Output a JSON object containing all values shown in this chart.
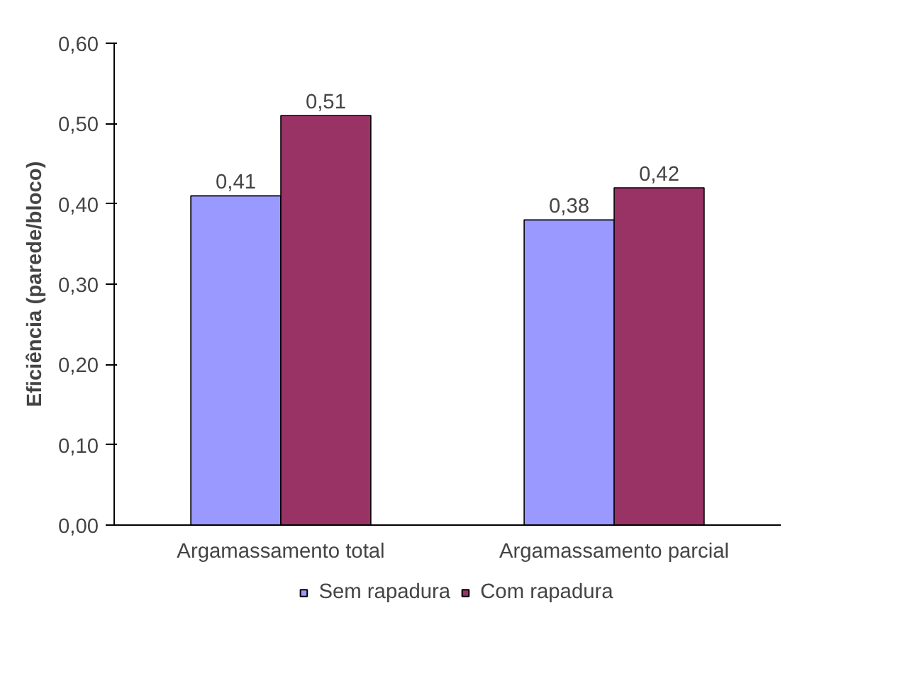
{
  "chart_data": {
    "type": "bar",
    "ylabel": "Eficiência (parede/bloco)",
    "categories": [
      "Argamassamento total",
      "Argamassamento parcial"
    ],
    "series": [
      {
        "name": "Sem rapadura",
        "color": "#9999ff",
        "values": [
          0.41,
          0.38
        ],
        "value_labels": [
          "0,41",
          "0,38"
        ]
      },
      {
        "name": "Com rapadura",
        "color": "#993366",
        "values": [
          0.51,
          0.42
        ],
        "value_labels": [
          "0,51",
          "0,42"
        ]
      }
    ],
    "ylim": [
      0,
      0.6
    ],
    "yticks": [
      {
        "value": 0,
        "label": "0,00"
      },
      {
        "value": 0.1,
        "label": "0,10"
      },
      {
        "value": 0.2,
        "label": "0,20"
      },
      {
        "value": 0.3,
        "label": "0,30"
      },
      {
        "value": 0.4,
        "label": "0,40"
      },
      {
        "value": 0.5,
        "label": "0,50"
      },
      {
        "value": 0.6,
        "label": "0,60"
      }
    ],
    "grid": false,
    "legend": "bottom"
  }
}
